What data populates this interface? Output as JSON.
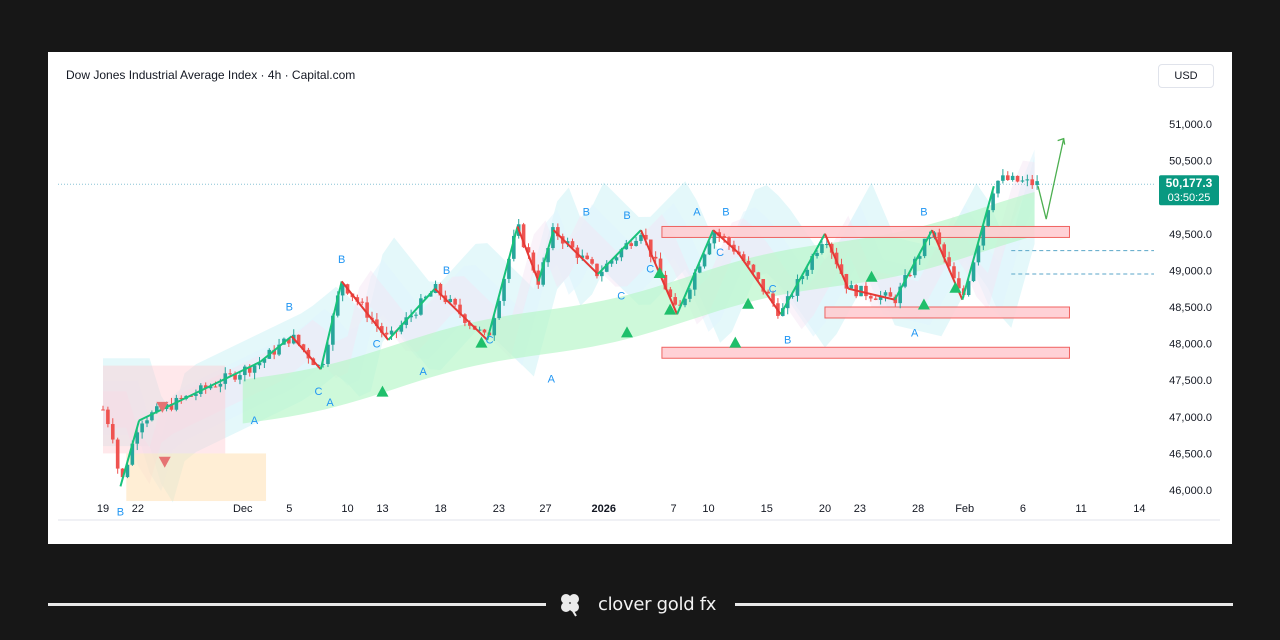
{
  "chart_title": "Dow Jones Industrial Average Index · 4h · Capital.com",
  "currency": "USD",
  "price_badge": {
    "price": "50,177.3",
    "countdown": "03:50:25"
  },
  "brand": "clover gold fx",
  "colors": {
    "up": "#26a69a",
    "down": "#ef5350",
    "wave_up": "#18c27a",
    "wave_down": "#e53935",
    "label_blue": "#2196f3",
    "badge": "#089981"
  },
  "chart_data": {
    "type": "candlestick",
    "title": "Dow Jones Industrial Average Index · 4h · Capital.com",
    "xlabel": "",
    "ylabel": "",
    "ylim": [
      45700,
      51300
    ],
    "y_ticks": [
      46000,
      46500,
      47000,
      47500,
      48000,
      48500,
      49000,
      49500,
      50000,
      50500,
      51000
    ],
    "y_tick_labels": [
      "46,000.0",
      "46,500.0",
      "47,000.0",
      "47,500.0",
      "48,000.0",
      "48,500.0",
      "49,000.0",
      "49,500.0",
      "",
      "50,500.0",
      "51,000.0"
    ],
    "x_ticks": [
      {
        "label": "19",
        "day": 0
      },
      {
        "label": "22",
        "day": 3
      },
      {
        "label": "Dec",
        "day": 12
      },
      {
        "label": "5",
        "day": 16
      },
      {
        "label": "10",
        "day": 21
      },
      {
        "label": "13",
        "day": 24
      },
      {
        "label": "18",
        "day": 29
      },
      {
        "label": "23",
        "day": 34
      },
      {
        "label": "27",
        "day": 38
      },
      {
        "label": "2026",
        "day": 43
      },
      {
        "label": "7",
        "day": 49
      },
      {
        "label": "10",
        "day": 52
      },
      {
        "label": "15",
        "day": 57
      },
      {
        "label": "20",
        "day": 62
      },
      {
        "label": "23",
        "day": 65
      },
      {
        "label": "28",
        "day": 70
      },
      {
        "label": "Feb",
        "day": 74
      },
      {
        "label": "6",
        "day": 79
      },
      {
        "label": "11",
        "day": 84
      },
      {
        "label": "14",
        "day": 89
      }
    ],
    "last_price": 50177.3,
    "wave_path": [
      {
        "day": 1.5,
        "price": 46050
      },
      {
        "day": 3.1,
        "price": 46950
      },
      {
        "day": 13.5,
        "price": 47750
      },
      {
        "day": 16.2,
        "price": 48100
      },
      {
        "day": 18.7,
        "price": 47650
      },
      {
        "day": 20.5,
        "price": 48850
      },
      {
        "day": 24.5,
        "price": 48050
      },
      {
        "day": 28.5,
        "price": 48750
      },
      {
        "day": 33.0,
        "price": 48050
      },
      {
        "day": 35.6,
        "price": 49600
      },
      {
        "day": 37.4,
        "price": 48850
      },
      {
        "day": 38.7,
        "price": 49550
      },
      {
        "day": 42.5,
        "price": 48950
      },
      {
        "day": 46.2,
        "price": 49550
      },
      {
        "day": 49.3,
        "price": 48400
      },
      {
        "day": 52.4,
        "price": 49550
      },
      {
        "day": 54.5,
        "price": 49250
      },
      {
        "day": 58.2,
        "price": 48400
      },
      {
        "day": 62.0,
        "price": 49500
      },
      {
        "day": 64.0,
        "price": 48750
      },
      {
        "day": 68.0,
        "price": 48600
      },
      {
        "day": 71.2,
        "price": 49550
      },
      {
        "day": 73.8,
        "price": 48600
      },
      {
        "day": 76.5,
        "price": 50150
      }
    ],
    "boxes": [
      {
        "day_start": 48,
        "day_end": 83,
        "low": 49450,
        "high": 49600
      },
      {
        "day_start": 62,
        "day_end": 83,
        "low": 48350,
        "high": 48500
      },
      {
        "day_start": 48,
        "day_end": 83,
        "low": 47800,
        "high": 47950
      }
    ],
    "forecast_path": [
      {
        "day": 80.3,
        "price": 50150
      },
      {
        "day": 81.0,
        "price": 49700
      },
      {
        "day": 82.5,
        "price": 50800
      }
    ],
    "annotations": [
      {
        "text": "B",
        "day": 1.5,
        "price": 45650
      },
      {
        "text": "A",
        "day": 13.0,
        "price": 46900
      },
      {
        "text": "B",
        "day": 16.0,
        "price": 48450
      },
      {
        "text": "C",
        "day": 18.5,
        "price": 47300
      },
      {
        "text": "A",
        "day": 19.5,
        "price": 47150
      },
      {
        "text": "B",
        "day": 20.5,
        "price": 49100
      },
      {
        "text": "C",
        "day": 23.5,
        "price": 47950
      },
      {
        "text": "A",
        "day": 27.5,
        "price": 47570
      },
      {
        "text": "B",
        "day": 29.5,
        "price": 48950
      },
      {
        "text": "C",
        "day": 33.2,
        "price": 48000
      },
      {
        "text": "A",
        "day": 38.5,
        "price": 47470
      },
      {
        "text": "B",
        "day": 41.5,
        "price": 49750
      },
      {
        "text": "B",
        "day": 45.0,
        "price": 49700
      },
      {
        "text": "A",
        "day": 51.0,
        "price": 49750
      },
      {
        "text": "C",
        "day": 47.0,
        "price": 48970
      },
      {
        "text": "C",
        "day": 44.5,
        "price": 48600
      },
      {
        "text": "B",
        "day": 53.5,
        "price": 49750
      },
      {
        "text": "C",
        "day": 53.0,
        "price": 49200
      },
      {
        "text": "B",
        "day": 58.8,
        "price": 48000
      },
      {
        "text": "C",
        "day": 57.5,
        "price": 48700
      },
      {
        "text": "B",
        "day": 70.5,
        "price": 49750
      },
      {
        "text": "A",
        "day": 69.7,
        "price": 48100
      }
    ]
  }
}
